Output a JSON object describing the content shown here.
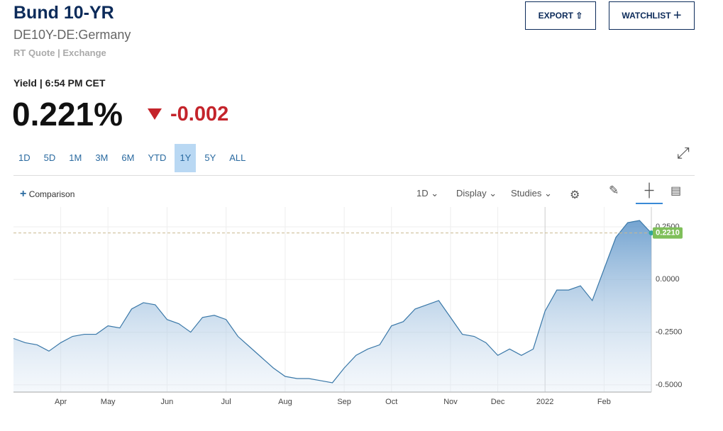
{
  "header": {
    "title": "Bund 10-YR",
    "symbol": "DE10Y-DE:Germany",
    "quote_type": "RT Quote | Exchange",
    "yield_time": "Yield | 6:54 PM CET",
    "price": "0.221%",
    "change": "-0.002"
  },
  "buttons": [
    "EXPORT",
    "WATCHLIST"
  ],
  "ranges": [
    "1D",
    "5D",
    "1M",
    "3M",
    "6M",
    "YTD",
    "1Y",
    "5Y",
    "ALL"
  ],
  "selected_range": "1Y",
  "toolbar": {
    "comparison": "Comparison",
    "interval": "1D",
    "display": "Display",
    "studies": "Studies"
  },
  "chart_data": {
    "type": "area",
    "color": "#3a78a8",
    "categories": [
      null,
      null,
      null,
      null,
      "Apr",
      null,
      null,
      null,
      "May",
      null,
      null,
      null,
      null,
      "Jun",
      null,
      null,
      null,
      null,
      "Jul",
      null,
      null,
      null,
      null,
      "Aug",
      null,
      null,
      null,
      null,
      "Sep",
      null,
      null,
      null,
      "Oct",
      null,
      null,
      null,
      null,
      "Nov",
      null,
      null,
      null,
      "Dec",
      null,
      null,
      null,
      "2022",
      null,
      null,
      null,
      null,
      "Feb",
      null,
      null,
      null,
      null
    ],
    "values": [
      -0.28,
      -0.3,
      -0.31,
      -0.34,
      -0.3,
      -0.27,
      -0.26,
      -0.26,
      -0.22,
      -0.23,
      -0.14,
      -0.11,
      -0.12,
      -0.19,
      -0.21,
      -0.25,
      -0.18,
      -0.17,
      -0.19,
      -0.27,
      -0.32,
      -0.37,
      -0.42,
      -0.46,
      -0.47,
      -0.47,
      -0.48,
      -0.49,
      -0.42,
      -0.36,
      -0.33,
      -0.31,
      -0.22,
      -0.2,
      -0.14,
      -0.12,
      -0.1,
      -0.18,
      -0.26,
      -0.27,
      -0.3,
      -0.36,
      -0.33,
      -0.36,
      -0.33,
      -0.15,
      -0.05,
      -0.05,
      -0.03,
      -0.1,
      0.05,
      0.2,
      0.27,
      0.28,
      0.22
    ],
    "ylim": [
      -0.534,
      0.344
    ],
    "yticks": [
      {
        "value": 0.25,
        "label": "0.2500"
      },
      {
        "value": 0,
        "label": "0.0000"
      },
      {
        "value": -0.25,
        "label": "-0.2500"
      },
      {
        "value": -0.5,
        "label": "-0.5000"
      }
    ],
    "grid": true,
    "last": {
      "value": 0.221,
      "label": "0.2210"
    }
  }
}
